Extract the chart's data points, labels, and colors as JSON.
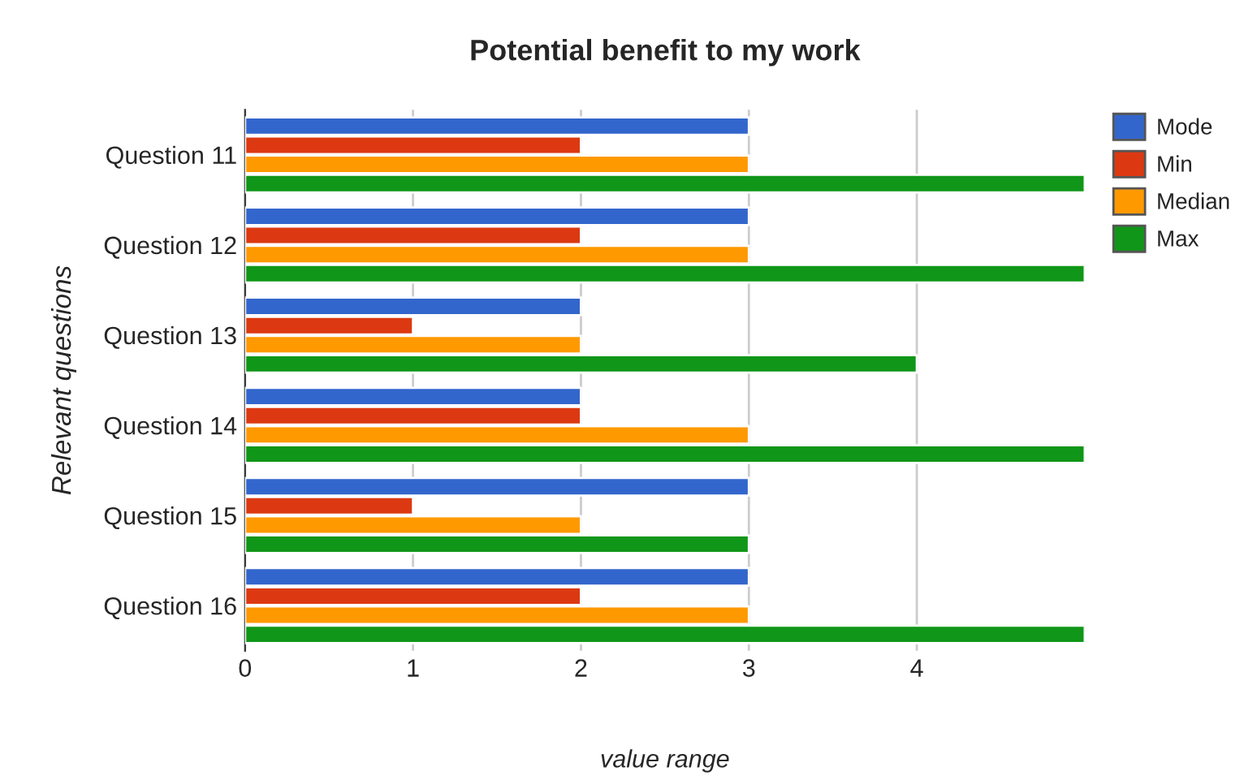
{
  "chart_data": {
    "type": "bar",
    "orientation": "horizontal",
    "title": "Potential benefit to my work",
    "xlabel": "value range",
    "ylabel": "Relevant questions",
    "categories": [
      "Question 11",
      "Question 12",
      "Question 13",
      "Question 14",
      "Question 15",
      "Question 16"
    ],
    "series": [
      {
        "name": "Mode",
        "color": "#3366cc",
        "values": [
          3,
          3,
          2,
          2,
          3,
          3
        ]
      },
      {
        "name": "Min",
        "color": "#dc3912",
        "values": [
          2,
          2,
          1,
          2,
          1,
          2
        ]
      },
      {
        "name": "Median",
        "color": "#ff9900",
        "values": [
          3,
          3,
          2,
          3,
          2,
          3
        ]
      },
      {
        "name": "Max",
        "color": "#109618",
        "values": [
          5,
          5,
          4,
          5,
          3,
          5
        ]
      }
    ],
    "xlim": [
      0,
      5
    ],
    "xticks": [
      0,
      1,
      2,
      3,
      4
    ],
    "grid": "x",
    "legend": "top right"
  }
}
